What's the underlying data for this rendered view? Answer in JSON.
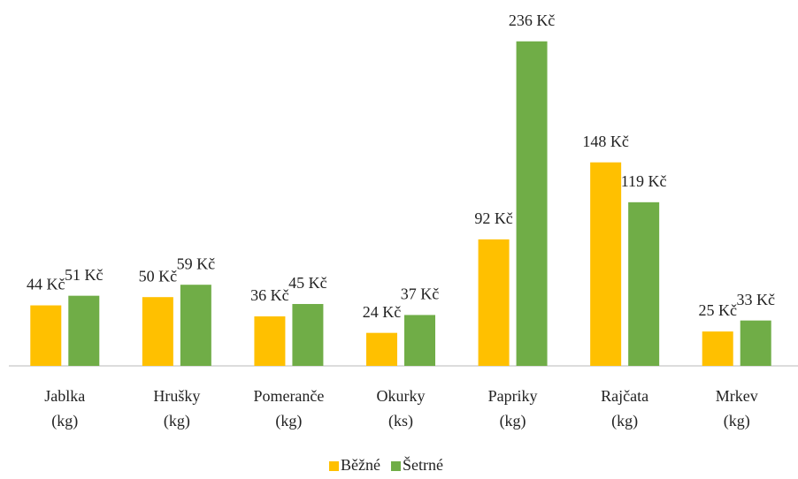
{
  "chart_data": {
    "type": "bar",
    "categories": [
      "Jablka (kg)",
      "Hrušky (kg)",
      "Pomeranče (kg)",
      "Okurky (ks)",
      "Papriky (kg)",
      "Rajčata (kg)",
      "Mrkev (kg)"
    ],
    "series": [
      {
        "name": "Běžné",
        "color": "#FFC000",
        "values": [
          44,
          50,
          36,
          24,
          92,
          148,
          25
        ],
        "value_labels": [
          "44 Kč",
          "50 Kč",
          "36 Kč",
          "24 Kč",
          "92 Kč",
          "148 Kč",
          "25 Kč"
        ]
      },
      {
        "name": "Šetrné",
        "color": "#70AD47",
        "values": [
          51,
          59,
          45,
          37,
          236,
          119,
          33
        ],
        "value_labels": [
          "51 Kč",
          "59 Kč",
          "45 Kč",
          "37 Kč",
          "236 Kč",
          "119 Kč",
          "33 Kč"
        ]
      }
    ],
    "ylim": [
      0,
      250
    ],
    "legend": "bottom"
  }
}
